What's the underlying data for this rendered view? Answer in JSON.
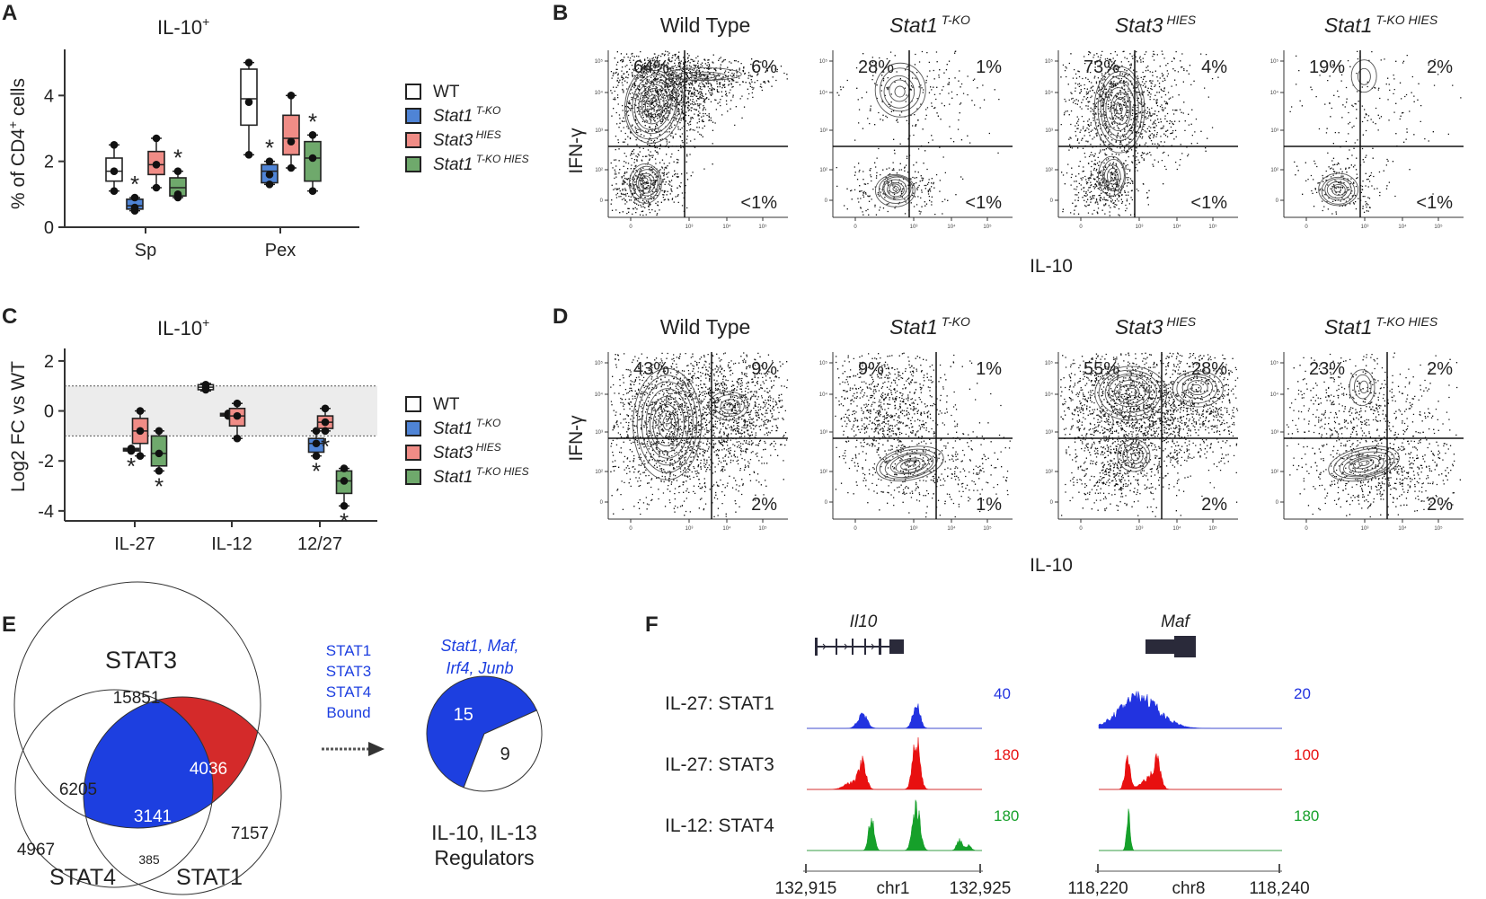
{
  "panels": {
    "A": {
      "label": "A",
      "title": "IL-10",
      "title_sup": "+",
      "ylabel": "% of CD4",
      "ylabel_sup": "+",
      "ylabel_tail": " cells"
    },
    "B": {
      "label": "B",
      "xlabel": "IL-10",
      "ylabel": "IFN-γ"
    },
    "C": {
      "label": "C",
      "title": "IL-10",
      "title_sup": "+",
      "ylabel": "Log2 FC vs WT"
    },
    "D": {
      "label": "D",
      "xlabel": "IL-10",
      "ylabel": "IFN-γ"
    },
    "E": {
      "label": "E"
    },
    "F": {
      "label": "F"
    }
  },
  "legend": [
    {
      "name": "WT",
      "sup": "",
      "color": "#ffffff"
    },
    {
      "name": "Stat1",
      "sup": "T-KO",
      "color": "#4f84d6"
    },
    {
      "name": "Stat3",
      "sup": "HIES",
      "color": "#f08c86"
    },
    {
      "name": "Stat1",
      "sup": "T-KO HIES",
      "color": "#6fa96c"
    }
  ],
  "significance_mark": "*",
  "chart_data": [
    {
      "type": "box",
      "panel": "A",
      "categories": [
        "Sp",
        "Pex"
      ],
      "ylim": [
        0,
        5.4
      ],
      "yticks": [
        0,
        2,
        4
      ],
      "series": [
        {
          "name": "WT",
          "groups": [
            {
              "min": 1.1,
              "q1": 1.4,
              "median": 1.7,
              "q3": 2.1,
              "max": 2.5,
              "points": [
                1.1,
                1.7,
                2.5
              ],
              "sig": false
            },
            {
              "min": 2.2,
              "q1": 3.1,
              "median": 3.9,
              "q3": 4.8,
              "max": 5.0,
              "points": [
                2.2,
                3.8,
                5.0
              ],
              "sig": false
            }
          ]
        },
        {
          "name": "Stat1 T-KO",
          "groups": [
            {
              "min": 0.5,
              "q1": 0.55,
              "median": 0.65,
              "q3": 0.85,
              "max": 0.9,
              "points": [
                0.5,
                0.6,
                0.9
              ],
              "sig": true
            },
            {
              "min": 1.3,
              "q1": 1.35,
              "median": 1.7,
              "q3": 1.9,
              "max": 2.0,
              "points": [
                1.3,
                1.6,
                2.0
              ],
              "sig": true
            }
          ]
        },
        {
          "name": "Stat3 HIES",
          "groups": [
            {
              "min": 1.2,
              "q1": 1.6,
              "median": 1.9,
              "q3": 2.3,
              "max": 2.7,
              "points": [
                1.2,
                1.9,
                2.7
              ],
              "sig": false
            },
            {
              "min": 1.8,
              "q1": 2.2,
              "median": 2.7,
              "q3": 3.4,
              "max": 4.0,
              "points": [
                1.8,
                2.6,
                4.0
              ],
              "sig": false
            }
          ]
        },
        {
          "name": "Stat1 T-KO HIES",
          "groups": [
            {
              "min": 0.9,
              "q1": 0.95,
              "median": 1.2,
              "q3": 1.5,
              "max": 1.7,
              "points": [
                0.9,
                1.0,
                1.7
              ],
              "sig": true
            },
            {
              "min": 1.1,
              "q1": 1.4,
              "median": 2.1,
              "q3": 2.6,
              "max": 2.8,
              "points": [
                1.1,
                2.1,
                2.8
              ],
              "sig": true
            }
          ]
        }
      ]
    },
    {
      "type": "box",
      "panel": "C",
      "categories": [
        "IL-27",
        "IL-12",
        "12/27"
      ],
      "ylim": [
        -4.4,
        2.5
      ],
      "yticks": [
        -4,
        -2,
        0,
        2
      ],
      "band": [
        -1,
        1
      ],
      "series": [
        {
          "name": "WT",
          "groups": [
            null,
            {
              "min": 0.8,
              "q1": 0.85,
              "median": 0.95,
              "q3": 1.05,
              "max": 1.1,
              "points": [
                0.85,
                0.95,
                1.05
              ],
              "sig": false
            },
            null
          ]
        },
        {
          "name": "Stat1 T-KO",
          "groups": [
            {
              "min": -1.6,
              "q1": -1.6,
              "median": -1.55,
              "q3": -1.5,
              "max": -1.5,
              "points": [
                -1.6,
                -1.55,
                -1.5
              ],
              "sig": true
            },
            {
              "min": -0.2,
              "q1": -0.2,
              "median": -0.15,
              "q3": -0.1,
              "max": -0.1,
              "points": [
                -0.2,
                -0.15,
                -0.1
              ],
              "sig": false
            },
            {
              "min": -1.8,
              "q1": -1.65,
              "median": -1.3,
              "q3": -1.1,
              "max": -0.8,
              "points": [
                -1.8,
                -1.3,
                -0.8
              ],
              "sig": true
            }
          ]
        },
        {
          "name": "Stat3 HIES",
          "groups": [
            {
              "min": -1.8,
              "q1": -1.3,
              "median": -0.8,
              "q3": -0.3,
              "max": 0.0,
              "points": [
                -1.8,
                -0.8,
                0.0
              ],
              "sig": false
            },
            {
              "min": -1.1,
              "q1": -0.6,
              "median": -0.2,
              "q3": 0.1,
              "max": 0.3,
              "points": [
                -1.1,
                -0.2,
                0.3
              ],
              "sig": false
            },
            {
              "min": -0.8,
              "q1": -0.7,
              "median": -0.45,
              "q3": -0.2,
              "max": 0.1,
              "points": [
                -0.8,
                -0.45,
                0.1
              ],
              "sig": true
            }
          ]
        },
        {
          "name": "Stat1 T-KO HIES",
          "groups": [
            {
              "min": -2.4,
              "q1": -2.2,
              "median": -1.7,
              "q3": -1.0,
              "max": -0.8,
              "points": [
                -2.4,
                -1.7,
                -0.8
              ],
              "sig": true
            },
            null,
            {
              "min": -3.8,
              "q1": -3.3,
              "median": -2.8,
              "q3": -2.4,
              "max": -2.3,
              "points": [
                -3.8,
                -2.8,
                -2.3
              ],
              "sig": true
            }
          ]
        }
      ]
    }
  ],
  "flow_B": [
    {
      "title": "Wild Type",
      "sup": "",
      "italic": false,
      "q": [
        "64%",
        "6%",
        "<1%"
      ]
    },
    {
      "title": "Stat1",
      "sup": "T-KO",
      "italic": true,
      "q": [
        "28%",
        "1%",
        "<1%"
      ]
    },
    {
      "title": "Stat3",
      "sup": "HIES",
      "italic": true,
      "q": [
        "73%",
        "4%",
        "<1%"
      ]
    },
    {
      "title": "Stat1",
      "sup": "T-KO HIES",
      "italic": true,
      "q": [
        "19%",
        "2%",
        "<1%"
      ]
    }
  ],
  "flow_D": [
    {
      "title": "Wild Type",
      "sup": "",
      "italic": false,
      "q": [
        "43%",
        "9%",
        "2%"
      ]
    },
    {
      "title": "Stat1",
      "sup": "T-KO",
      "italic": true,
      "q": [
        "9%",
        "1%",
        "1%"
      ]
    },
    {
      "title": "Stat3",
      "sup": "HIES",
      "italic": true,
      "q": [
        "55%",
        "28%",
        "2%"
      ]
    },
    {
      "title": "Stat1",
      "sup": "T-KO HIES",
      "italic": true,
      "q": [
        "23%",
        "2%",
        "2%"
      ]
    }
  ],
  "flow_axis_ticks": {
    "y": [
      "10⁵",
      "10⁴",
      "10³",
      "10²",
      "0"
    ],
    "x": [
      "0",
      "10³",
      "10⁴",
      "10⁵"
    ]
  },
  "venn": {
    "sets": {
      "stat3": "STAT3",
      "stat4": "STAT4",
      "stat1": "STAT1"
    },
    "counts": {
      "stat3_only": "15851",
      "stat3_stat4": "6205",
      "all_three": "3141",
      "stat3_stat1": "4036",
      "stat1_only": "7157",
      "stat4_only": "4967",
      "stat4_stat1": "385"
    },
    "colors": {
      "stat3": "#e8211d",
      "stat4": "#1a7a24",
      "stat1": "#1d3fe0",
      "fill_blue": "#1d3fe0",
      "fill_red": "#d42a2a"
    }
  },
  "arrow_text": [
    "STAT1",
    "STAT3",
    "STAT4",
    "Bound"
  ],
  "pie": {
    "genes": [
      "Stat1, Maf,",
      "Irf4, Junb"
    ],
    "values": [
      15,
      9
    ],
    "labels": [
      "15",
      "9"
    ],
    "caption": [
      "IL-10, IL-13",
      "Regulators"
    ]
  },
  "tracks": {
    "genes": [
      {
        "name": "Il10",
        "chr": "chr1",
        "start": "132,915",
        "end": "132,925"
      },
      {
        "name": "Maf",
        "chr": "chr8",
        "start": "118,220",
        "end": "118,240"
      }
    ],
    "rows": [
      {
        "label": "IL-27: STAT1",
        "color": "#2233e0",
        "scales": [
          "40",
          "20"
        ]
      },
      {
        "label": "IL-27: STAT3",
        "color": "#e81010",
        "scales": [
          "180",
          "100"
        ]
      },
      {
        "label": "IL-12: STAT4",
        "color": "#16a02a",
        "scales": [
          "180",
          "180"
        ]
      }
    ]
  }
}
